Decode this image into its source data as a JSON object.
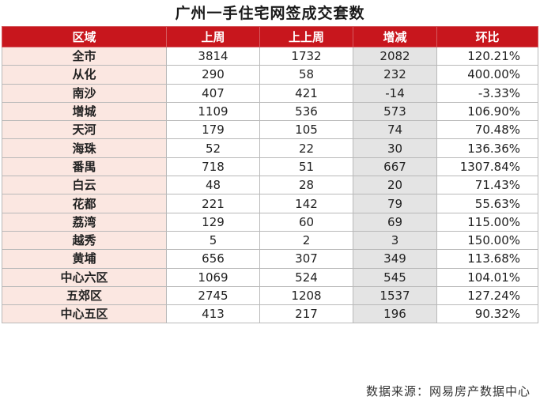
{
  "title": "广州一手住宅网签成交套数",
  "headers": [
    "区域",
    "上周",
    "上上周",
    "增减",
    "环比"
  ],
  "rows": [
    {
      "region": "全市",
      "last_week": "3814",
      "prev_week": "1732",
      "change": "2082",
      "ratio": "120.21%"
    },
    {
      "region": "从化",
      "last_week": "290",
      "prev_week": "58",
      "change": "232",
      "ratio": "400.00%"
    },
    {
      "region": "南沙",
      "last_week": "407",
      "prev_week": "421",
      "change": "-14",
      "ratio": "-3.33%"
    },
    {
      "region": "增城",
      "last_week": "1109",
      "prev_week": "536",
      "change": "573",
      "ratio": "106.90%",
      "highlight": "red"
    },
    {
      "region": "天河",
      "last_week": "179",
      "prev_week": "105",
      "change": "74",
      "ratio": "70.48%"
    },
    {
      "region": "海珠",
      "last_week": "52",
      "prev_week": "22",
      "change": "30",
      "ratio": "136.36%"
    },
    {
      "region": "番禺",
      "last_week": "718",
      "prev_week": "51",
      "change": "667",
      "ratio": "1307.84%"
    },
    {
      "region": "白云",
      "last_week": "48",
      "prev_week": "28",
      "change": "20",
      "ratio": "71.43%"
    },
    {
      "region": "花都",
      "last_week": "221",
      "prev_week": "142",
      "change": "79",
      "ratio": "55.63%"
    },
    {
      "region": "荔湾",
      "last_week": "129",
      "prev_week": "60",
      "change": "69",
      "ratio": "115.00%"
    },
    {
      "region": "越秀",
      "last_week": "5",
      "prev_week": "2",
      "change": "3",
      "ratio": "150.00%",
      "highlight": "green"
    },
    {
      "region": "黄埔",
      "last_week": "656",
      "prev_week": "307",
      "change": "349",
      "ratio": "113.68%"
    },
    {
      "region": "中心六区",
      "last_week": "1069",
      "prev_week": "524",
      "change": "545",
      "ratio": "104.01%"
    },
    {
      "region": "五郊区",
      "last_week": "2745",
      "prev_week": "1208",
      "change": "1537",
      "ratio": "127.24%"
    },
    {
      "region": "中心五区",
      "last_week": "413",
      "prev_week": "217",
      "change": "196",
      "ratio": "90.32%"
    }
  ],
  "source": "数据来源：网易房产数据中心",
  "colors": {
    "header_bg": "#c8161d",
    "region_bg": "#fbe7e1",
    "diff_bg": "#e4e4e4",
    "red": "#c0392b",
    "green": "#2e9a4b"
  }
}
